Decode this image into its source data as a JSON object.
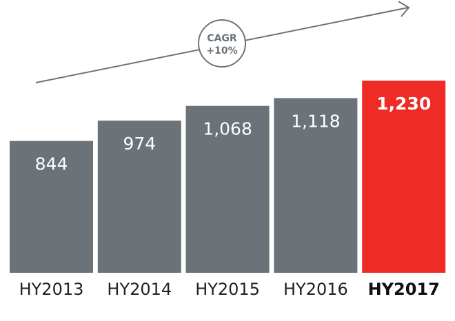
{
  "chart_data": {
    "type": "bar",
    "categories": [
      "HY2013",
      "HY2014",
      "HY2015",
      "HY2016",
      "HY2017"
    ],
    "values": [
      844,
      974,
      1068,
      1118,
      1230
    ],
    "value_labels": [
      "844",
      "974",
      "1,068",
      "1,118",
      "1,230"
    ],
    "highlight_category": "HY2017",
    "title": "",
    "xlabel": "",
    "ylabel": "",
    "ylim": [
      0,
      1230
    ],
    "grid": false,
    "legend": "none",
    "annotation": {
      "line1": "CAGR",
      "line2": "+10%",
      "type": "trend-arrow"
    }
  },
  "colors": {
    "bar": "#6b7379",
    "highlight": "#ee2b24",
    "arrow": "#6b7379",
    "text": "#222222",
    "value_text": "#ffffff"
  }
}
